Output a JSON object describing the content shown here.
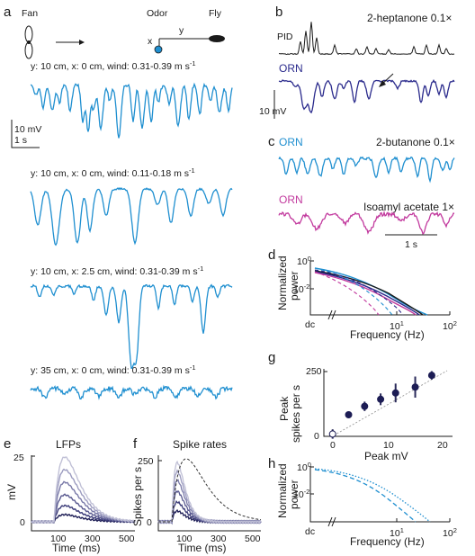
{
  "panels": {
    "a": {
      "letter": "a",
      "fan_label": "Fan",
      "odor_label": "Odor",
      "fly_label": "Fly",
      "x_label": "x",
      "y_label": "y",
      "scale_mv": "10 mV",
      "scale_s": "1 s",
      "traces": [
        {
          "label": "y: 10 cm, x: 0 cm, wind: 0.31-0.39 m s",
          "sup": "-1"
        },
        {
          "label": "y: 10 cm, x: 0 cm, wind: 0.11-0.18 m s",
          "sup": "-1"
        },
        {
          "label": "y: 10 cm, x: 2.5 cm, wind: 0.31-0.39 m s",
          "sup": "-1"
        },
        {
          "label": "y: 35 cm, x: 0 cm, wind: 0.31-0.39 m s",
          "sup": "-1"
        }
      ]
    },
    "b": {
      "letter": "b",
      "odor": "2-heptanone 0.1×",
      "pid_label": "PID",
      "orn_label": "ORN",
      "scale_mv": "10 mV"
    },
    "c": {
      "letter": "c",
      "orn1_label": "ORN",
      "odor1": "2-butanone 0.1×",
      "orn2_label": "ORN",
      "odor2": "Isoamyl acetate 1×",
      "scale_s": "1 s"
    },
    "d": {
      "letter": "d",
      "ylabel_top": "Normalized",
      "ylabel_bottom": "power",
      "xlabel": "Frequency (Hz)",
      "yticks": {
        "top": "10",
        "top_exp": "0",
        "mid": "10",
        "mid_exp": "-2"
      },
      "xticks": {
        "dc": "dc",
        "ten": "10",
        "ten_exp": "1",
        "hundred": "10",
        "hundred_exp": "2"
      }
    },
    "e": {
      "letter": "e",
      "title": "LFPs",
      "ylabel": "mV",
      "xlabel": "Time (ms)",
      "yticks": [
        "25",
        "0"
      ],
      "xticks": [
        "100",
        "300",
        "500"
      ]
    },
    "f": {
      "letter": "f",
      "title": "Spike rates",
      "ylabel": "Spikes per s",
      "xlabel": "Time (ms)",
      "yticks": [
        "250",
        "0"
      ],
      "xticks": [
        "100",
        "300",
        "500"
      ]
    },
    "g": {
      "letter": "g",
      "ylabel_top": "Peak",
      "ylabel_bottom": "spikes per s",
      "xlabel": "Peak mV",
      "yticks": [
        "250",
        "0"
      ],
      "xticks": [
        "0",
        "10",
        "20"
      ]
    },
    "h": {
      "letter": "h",
      "ylabel_top": "Normalized",
      "ylabel_bottom": "power",
      "xlabel": "Frequency (Hz)",
      "yticks": {
        "top": "10",
        "top_exp": "0",
        "mid": "10",
        "mid_exp": "-2"
      },
      "xticks": {
        "dc": "dc",
        "ten": "10",
        "ten_exp": "1",
        "hundred": "10",
        "hundred_exp": "2"
      }
    }
  },
  "colors": {
    "blue": "#1f8fd0",
    "navy": "#2a2a8c",
    "magenta": "#c23a9e",
    "dark": "#1a1a1a",
    "grey": "#8a8a8a"
  },
  "chart_data": [
    {
      "type": "scatter",
      "panel": "g",
      "xlabel": "Peak mV",
      "ylabel": "Peak spikes per s",
      "xlim": [
        0,
        23
      ],
      "ylim": [
        0,
        280
      ],
      "x": [
        0.3,
        3.4,
        6.5,
        9.6,
        12.5,
        16.3,
        19.5
      ],
      "y": [
        10,
        92,
        128,
        158,
        185,
        210,
        260
      ],
      "error": [
        20,
        12,
        20,
        25,
        40,
        45,
        18
      ]
    }
  ]
}
